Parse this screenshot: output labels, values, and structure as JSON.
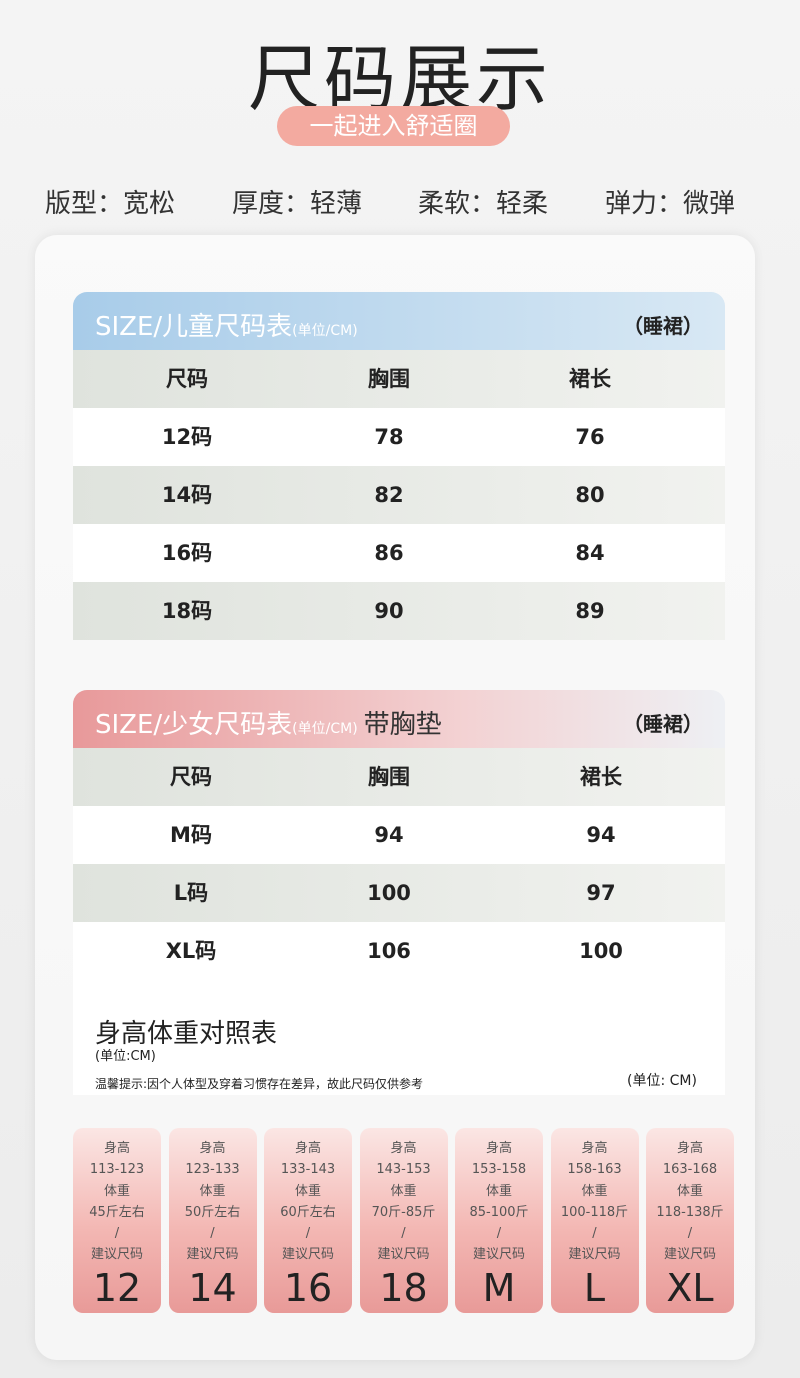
{
  "header": {
    "title": "尺码展示",
    "subtitle": "一起进入舒适圈"
  },
  "attributes": [
    "版型：宽松",
    "厚度：轻薄",
    "柔软：轻柔",
    "弹力：微弹"
  ],
  "kids_table": {
    "title": "SIZE/儿童尺码表",
    "unit": "(单位/CM)",
    "tag": "（睡裙）",
    "columns": [
      "尺码",
      "胸围",
      "裙长"
    ],
    "rows": [
      [
        "12码",
        "78",
        "76"
      ],
      [
        "14码",
        "82",
        "80"
      ],
      [
        "16码",
        "86",
        "84"
      ],
      [
        "18码",
        "90",
        "89"
      ]
    ]
  },
  "teen_table": {
    "title": "SIZE/少女尺码表",
    "unit": "(单位/CM)",
    "note": "带胸垫",
    "tag": "（睡裙）",
    "columns": [
      "尺码",
      "胸围",
      "裙长"
    ],
    "rows": [
      [
        "M码",
        "94",
        "94"
      ],
      [
        "L码",
        "100",
        "97"
      ],
      [
        "XL码",
        "106",
        "100"
      ]
    ]
  },
  "reference": {
    "title": "身高体重对照表",
    "unit": "(单位:CM)",
    "tip": "温馨提示:因个人体型及穿着习惯存在差异，故此尺码仅供参考",
    "unit_right": "(单位: CM)",
    "cards": [
      {
        "height_label": "身高",
        "height": "113-123",
        "weight_label": "体重",
        "weight": "45斤左右",
        "separator": "/",
        "size_label": "建议尺码",
        "size": "12"
      },
      {
        "height_label": "身高",
        "height": "123-133",
        "weight_label": "体重",
        "weight": "50斤左右",
        "separator": "/",
        "size_label": "建议尺码",
        "size": "14"
      },
      {
        "height_label": "身高",
        "height": "133-143",
        "weight_label": "体重",
        "weight": "60斤左右",
        "separator": "/",
        "size_label": "建议尺码",
        "size": "16"
      },
      {
        "height_label": "身高",
        "height": "143-153",
        "weight_label": "体重",
        "weight": "70斤-85斤",
        "separator": "/",
        "size_label": "建议尺码",
        "size": "18"
      },
      {
        "height_label": "身高",
        "height": "153-158",
        "weight_label": "体重",
        "weight": "85-100斤",
        "separator": "/",
        "size_label": "建议尺码",
        "size": "M"
      },
      {
        "height_label": "身高",
        "height": "158-163",
        "weight_label": "体重",
        "weight": "100-118斤",
        "separator": "/",
        "size_label": "建议尺码",
        "size": "L"
      },
      {
        "height_label": "身高",
        "height": "163-168",
        "weight_label": "体重",
        "weight": "118-138斤",
        "separator": "/",
        "size_label": "建议尺码",
        "size": "XL"
      }
    ]
  }
}
